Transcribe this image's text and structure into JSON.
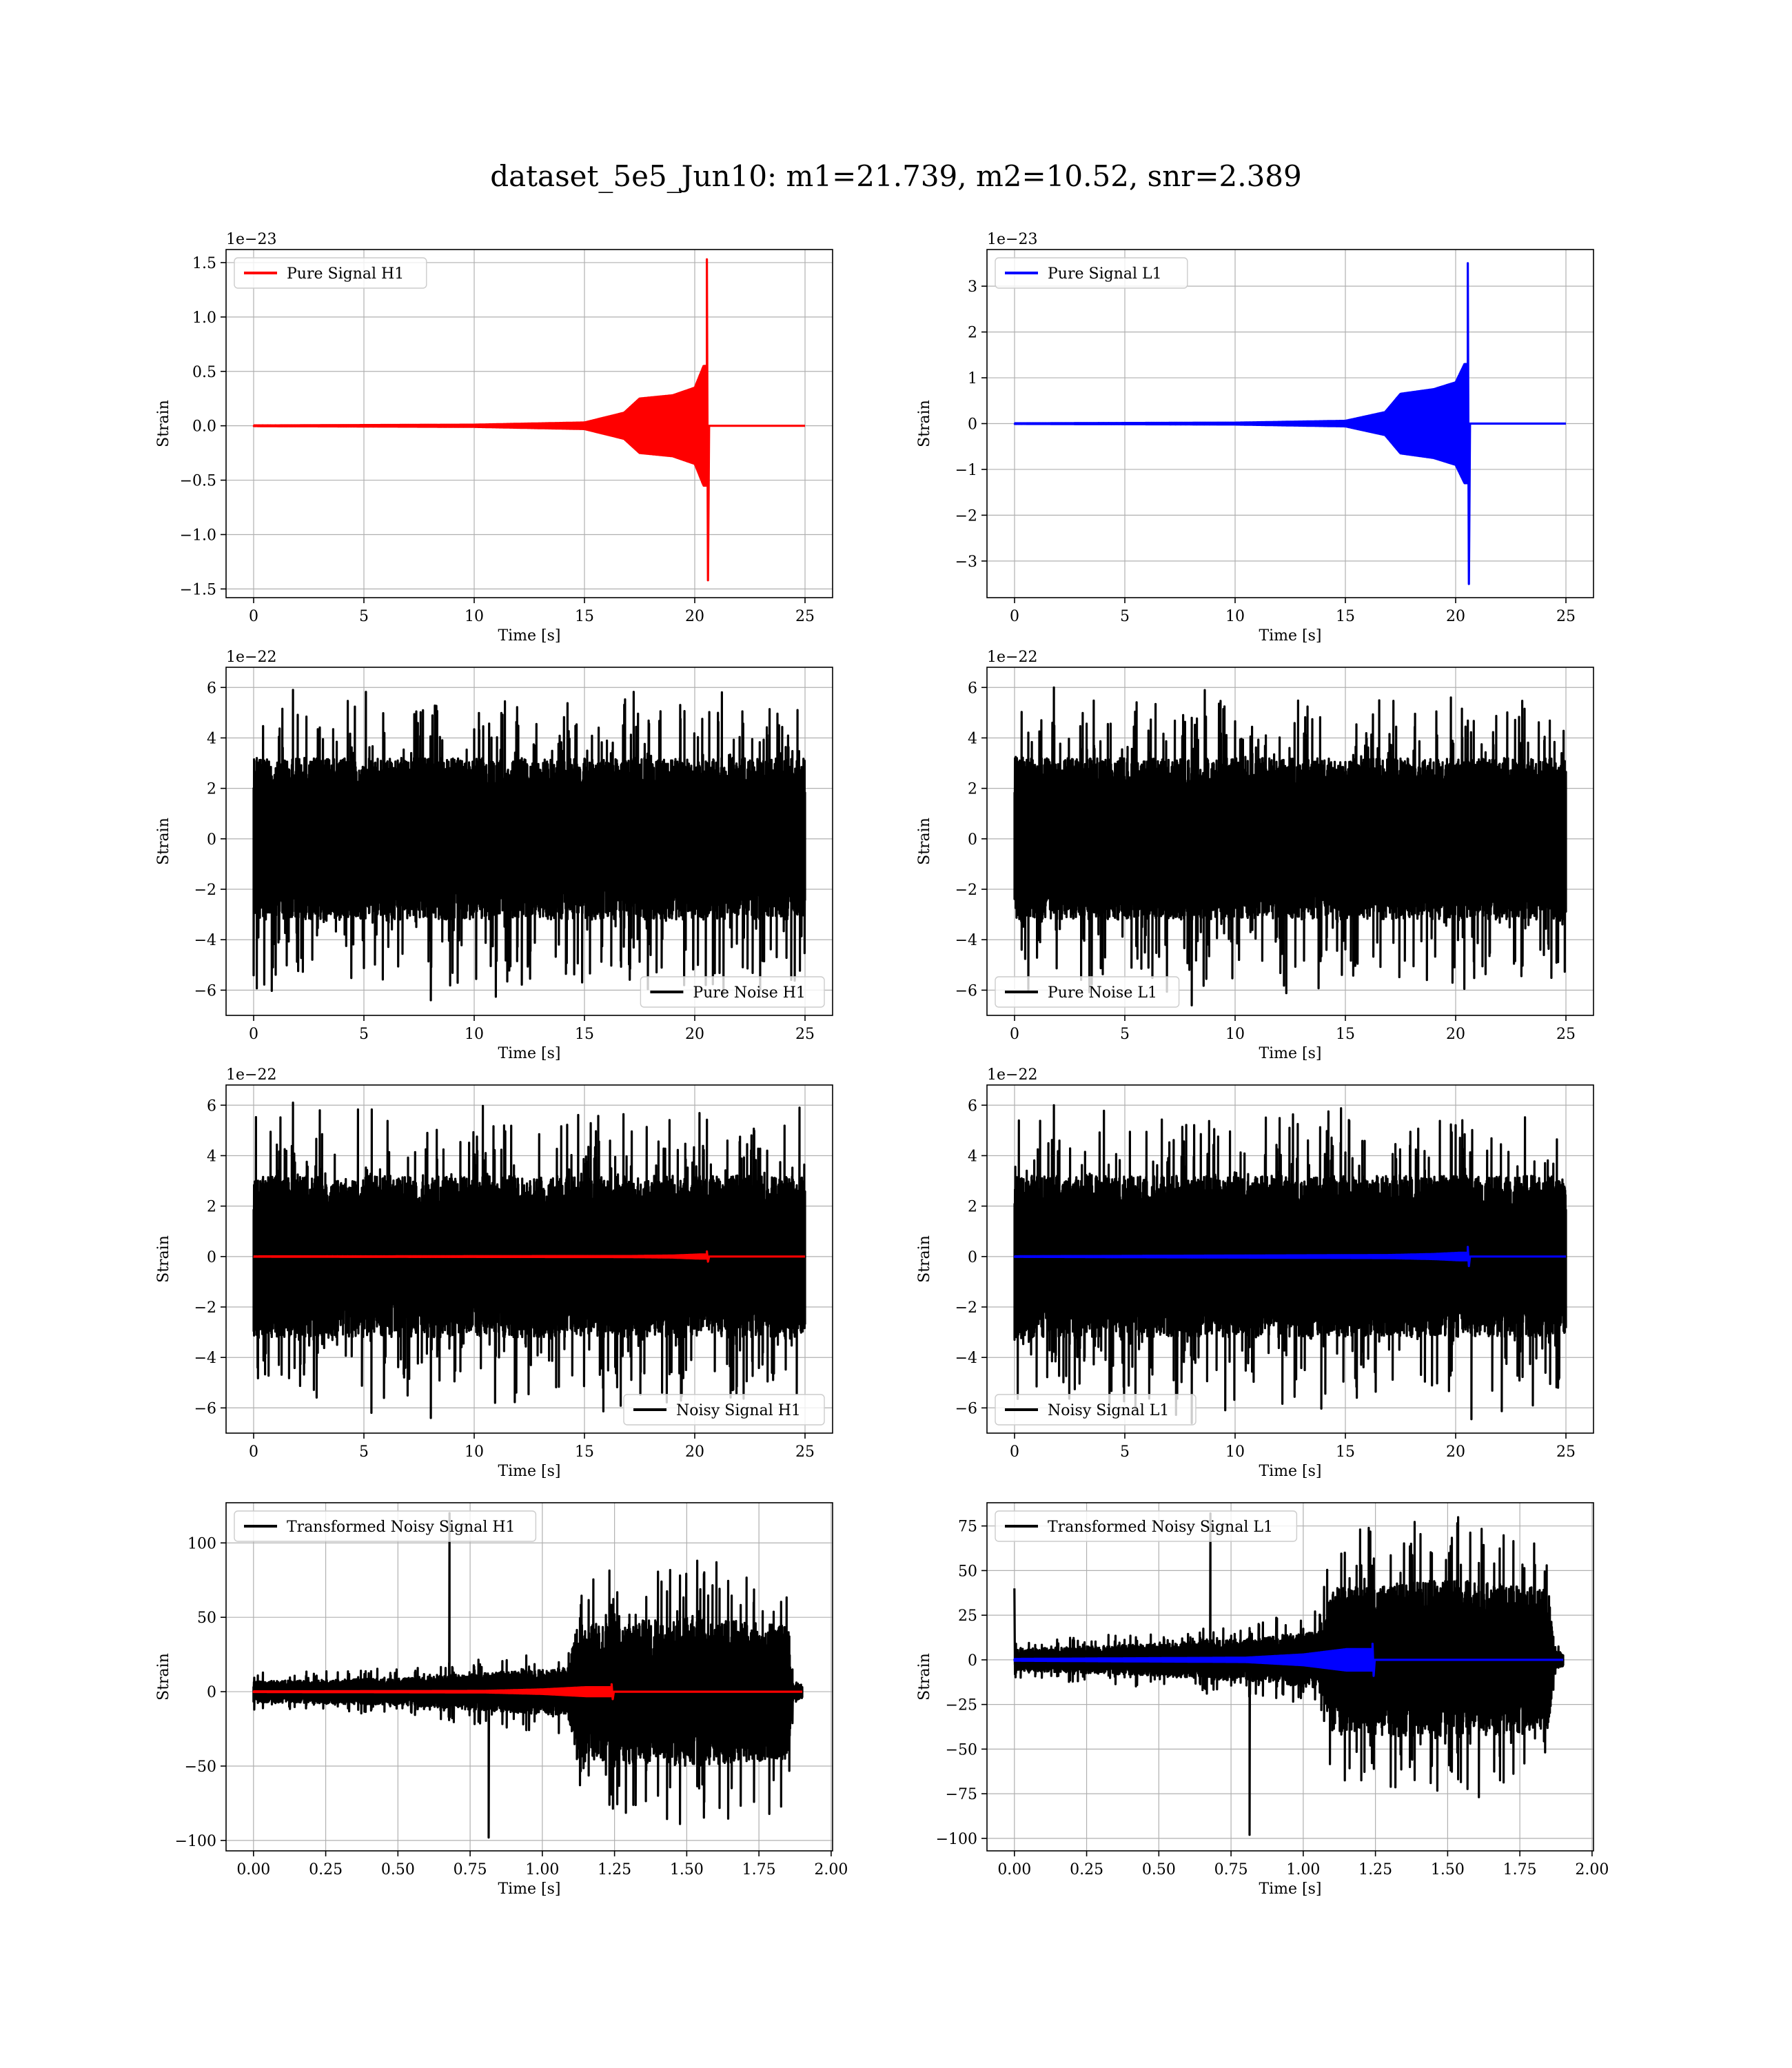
{
  "suptitle": "dataset_5e5_Jun10: m1=21.739, m2=10.52, snr=2.389",
  "chart_data": [
    {
      "id": "p1",
      "type": "line",
      "row": 0,
      "col": 0,
      "offset_text": "1e−23",
      "xlabel": "Time [s]",
      "ylabel": "Strain",
      "xlim": [
        -1.25,
        26.25
      ],
      "ylim": [
        -1.58,
        1.62
      ],
      "xticks": [
        0,
        5,
        10,
        15,
        20,
        25
      ],
      "xticklabels": [
        "0",
        "5",
        "10",
        "15",
        "20",
        "25"
      ],
      "yticks": [
        -1.5,
        -1.0,
        -0.5,
        0.0,
        0.5,
        1.0,
        1.5
      ],
      "yticklabels": [
        "−1.5",
        "−1.0",
        "−0.5",
        "0.0",
        "0.5",
        "1.0",
        "1.5"
      ],
      "grid": true,
      "legend_loc": "upper-left",
      "series": [
        {
          "name": "Pure Signal H1",
          "color": "#ff0000",
          "kind": "chirp",
          "x_range": [
            0,
            25
          ],
          "amp_stages": [
            [
              0,
              0.003
            ],
            [
              10,
              0.01
            ],
            [
              15,
              0.03
            ],
            [
              16.8,
              0.12
            ],
            [
              17.5,
              0.25
            ],
            [
              19,
              0.28
            ],
            [
              20.0,
              0.35
            ],
            [
              20.4,
              0.55
            ]
          ],
          "peak_t": 20.55,
          "peak_hi": 1.53,
          "peak_lo": -1.42
        }
      ]
    },
    {
      "id": "p2",
      "type": "line",
      "row": 0,
      "col": 1,
      "offset_text": "1e−23",
      "xlabel": "Time [s]",
      "ylabel": "Strain",
      "xlim": [
        -1.25,
        26.25
      ],
      "ylim": [
        -3.8,
        3.8
      ],
      "xticks": [
        0,
        5,
        10,
        15,
        20,
        25
      ],
      "xticklabels": [
        "0",
        "5",
        "10",
        "15",
        "20",
        "25"
      ],
      "yticks": [
        -3,
        -2,
        -1,
        0,
        1,
        2,
        3
      ],
      "yticklabels": [
        "−3",
        "−2",
        "−1",
        "0",
        "1",
        "2",
        "3"
      ],
      "grid": true,
      "legend_loc": "upper-left",
      "series": [
        {
          "name": "Pure Signal L1",
          "color": "#0000ff",
          "kind": "chirp",
          "x_range": [
            0,
            25
          ],
          "amp_stages": [
            [
              0,
              0.006
            ],
            [
              10,
              0.02
            ],
            [
              15,
              0.06
            ],
            [
              16.8,
              0.25
            ],
            [
              17.5,
              0.65
            ],
            [
              19,
              0.75
            ],
            [
              20.0,
              0.9
            ],
            [
              20.4,
              1.3
            ]
          ],
          "peak_t": 20.55,
          "peak_hi": 3.5,
          "peak_lo": -3.5
        }
      ]
    },
    {
      "id": "p3",
      "type": "line",
      "row": 1,
      "col": 0,
      "offset_text": "1e−22",
      "xlabel": "Time [s]",
      "ylabel": "Strain",
      "xlim": [
        -1.25,
        26.25
      ],
      "ylim": [
        -7.0,
        6.8
      ],
      "xticks": [
        0,
        5,
        10,
        15,
        20,
        25
      ],
      "xticklabels": [
        "0",
        "5",
        "10",
        "15",
        "20",
        "25"
      ],
      "yticks": [
        -6,
        -4,
        -2,
        0,
        2,
        4,
        6
      ],
      "yticklabels": [
        "−6",
        "−4",
        "−2",
        "0",
        "2",
        "4",
        "6"
      ],
      "grid": true,
      "legend_loc": "lower-right",
      "series": [
        {
          "name": "Pure Noise H1",
          "color": "#000000",
          "kind": "noise",
          "x_range": [
            0,
            25
          ],
          "band": [
            -3.2,
            3.2
          ],
          "max_hi": 5.9,
          "min_lo": -6.4,
          "seed": 11
        }
      ]
    },
    {
      "id": "p4",
      "type": "line",
      "row": 1,
      "col": 1,
      "offset_text": "1e−22",
      "xlabel": "Time [s]",
      "ylabel": "Strain",
      "xlim": [
        -1.25,
        26.25
      ],
      "ylim": [
        -7.0,
        6.8
      ],
      "xticks": [
        0,
        5,
        10,
        15,
        20,
        25
      ],
      "xticklabels": [
        "0",
        "5",
        "10",
        "15",
        "20",
        "25"
      ],
      "yticks": [
        -6,
        -4,
        -2,
        0,
        2,
        4,
        6
      ],
      "yticklabels": [
        "−6",
        "−4",
        "−2",
        "0",
        "2",
        "4",
        "6"
      ],
      "grid": true,
      "legend_loc": "lower-left",
      "series": [
        {
          "name": "Pure Noise L1",
          "color": "#000000",
          "kind": "noise",
          "x_range": [
            0,
            25
          ],
          "band": [
            -3.2,
            3.2
          ],
          "max_hi": 6.0,
          "min_lo": -6.6,
          "seed": 23
        }
      ]
    },
    {
      "id": "p5",
      "type": "line",
      "row": 2,
      "col": 0,
      "offset_text": "1e−22",
      "xlabel": "Time [s]",
      "ylabel": "Strain",
      "xlim": [
        -1.25,
        26.25
      ],
      "ylim": [
        -7.0,
        6.8
      ],
      "xticks": [
        0,
        5,
        10,
        15,
        20,
        25
      ],
      "xticklabels": [
        "0",
        "5",
        "10",
        "15",
        "20",
        "25"
      ],
      "yticks": [
        -6,
        -4,
        -2,
        0,
        2,
        4,
        6
      ],
      "yticklabels": [
        "−6",
        "−4",
        "−2",
        "0",
        "2",
        "4",
        "6"
      ],
      "grid": true,
      "legend_loc": "lower-right",
      "series": [
        {
          "name": "Noisy Signal H1",
          "color": "#000000",
          "kind": "noise",
          "x_range": [
            0,
            25
          ],
          "band": [
            -3.2,
            3.2
          ],
          "max_hi": 6.1,
          "min_lo": -6.4,
          "seed": 37
        },
        {
          "name": "",
          "color": "#ff0000",
          "kind": "chirp",
          "x_range": [
            0,
            25
          ],
          "amp_stages": [
            [
              0,
              0.005
            ],
            [
              17,
              0.02
            ],
            [
              19,
              0.04
            ],
            [
              20.2,
              0.08
            ]
          ],
          "peak_t": 20.55,
          "peak_hi": 0.2,
          "peak_lo": -0.2
        }
      ]
    },
    {
      "id": "p6",
      "type": "line",
      "row": 2,
      "col": 1,
      "offset_text": "1e−22",
      "xlabel": "Time [s]",
      "ylabel": "Strain",
      "xlim": [
        -1.25,
        26.25
      ],
      "ylim": [
        -7.0,
        6.8
      ],
      "xticks": [
        0,
        5,
        10,
        15,
        20,
        25
      ],
      "xticklabels": [
        "0",
        "5",
        "10",
        "15",
        "20",
        "25"
      ],
      "yticks": [
        -6,
        -4,
        -2,
        0,
        2,
        4,
        6
      ],
      "yticklabels": [
        "−6",
        "−4",
        "−2",
        "0",
        "2",
        "4",
        "6"
      ],
      "grid": true,
      "legend_loc": "lower-left",
      "series": [
        {
          "name": "Noisy Signal L1",
          "color": "#000000",
          "kind": "noise",
          "x_range": [
            0,
            25
          ],
          "band": [
            -3.2,
            3.2
          ],
          "max_hi": 6.0,
          "min_lo": -6.6,
          "seed": 53
        },
        {
          "name": "",
          "color": "#0000ff",
          "kind": "chirp",
          "x_range": [
            0,
            25
          ],
          "amp_stages": [
            [
              0,
              0.01
            ],
            [
              17,
              0.06
            ],
            [
              19,
              0.1
            ],
            [
              20.2,
              0.15
            ]
          ],
          "peak_t": 20.55,
          "peak_hi": 0.38,
          "peak_lo": -0.38
        }
      ]
    },
    {
      "id": "p7",
      "type": "line",
      "row": 3,
      "col": 0,
      "offset_text": "",
      "xlabel": "Time [s]",
      "ylabel": "Strain",
      "xlim": [
        -0.095,
        2.005
      ],
      "ylim": [
        -107,
        127
      ],
      "xticks": [
        0.0,
        0.25,
        0.5,
        0.75,
        1.0,
        1.25,
        1.5,
        1.75,
        2.0
      ],
      "xticklabels": [
        "0.00",
        "0.25",
        "0.50",
        "0.75",
        "1.00",
        "1.25",
        "1.50",
        "1.75",
        "2.00"
      ],
      "yticks": [
        -100,
        -50,
        0,
        50,
        100
      ],
      "yticklabels": [
        "−100",
        "−50",
        "0",
        "50",
        "100"
      ],
      "grid": true,
      "legend_loc": "upper-left",
      "series": [
        {
          "name": "Transformed Noisy Signal H1",
          "color": "#000000",
          "kind": "envnoise",
          "x_range": [
            0,
            1.9
          ],
          "env": [
            [
              0,
              7
            ],
            [
              0.5,
              9
            ],
            [
              0.9,
              14
            ],
            [
              1.09,
              16
            ],
            [
              1.12,
              45
            ],
            [
              1.5,
              50
            ],
            [
              1.85,
              45
            ],
            [
              1.87,
              5
            ],
            [
              1.9,
              5
            ]
          ],
          "max_hi": 120,
          "min_lo": -98,
          "seed": 71
        },
        {
          "name": "",
          "color": "#ff0000",
          "kind": "chirp",
          "x_range": [
            0,
            1.9
          ],
          "amp_stages": [
            [
              0,
              0.2
            ],
            [
              0.8,
              0.5
            ],
            [
              1.0,
              1.5
            ],
            [
              1.15,
              3.0
            ]
          ],
          "peak_t": 1.24,
          "peak_hi": 5,
          "peak_lo": -5
        }
      ]
    },
    {
      "id": "p8",
      "type": "line",
      "row": 3,
      "col": 1,
      "offset_text": "",
      "xlabel": "Time [s]",
      "ylabel": "Strain",
      "xlim": [
        -0.095,
        2.005
      ],
      "ylim": [
        -107,
        88
      ],
      "xticks": [
        0.0,
        0.25,
        0.5,
        0.75,
        1.0,
        1.25,
        1.5,
        1.75,
        2.0
      ],
      "xticklabels": [
        "0.00",
        "0.25",
        "0.50",
        "0.75",
        "1.00",
        "1.25",
        "1.50",
        "1.75",
        "2.00"
      ],
      "yticks": [
        -100,
        -75,
        -50,
        -25,
        0,
        25,
        50,
        75
      ],
      "yticklabels": [
        "−100",
        "−75",
        "−50",
        "−25",
        "0",
        "25",
        "50",
        "75"
      ],
      "grid": true,
      "legend_loc": "upper-left",
      "series": [
        {
          "name": "Transformed Noisy Signal L1",
          "color": "#000000",
          "kind": "envnoise",
          "x_range": [
            0,
            1.9
          ],
          "env": [
            [
              0,
              6
            ],
            [
              0.5,
              9
            ],
            [
              0.9,
              13
            ],
            [
              1.06,
              16
            ],
            [
              1.1,
              40
            ],
            [
              1.5,
              45
            ],
            [
              1.85,
              40
            ],
            [
              1.87,
              5
            ],
            [
              1.9,
              4
            ]
          ],
          "max_hi": 82,
          "min_lo": -98,
          "seed": 89,
          "spike_start": 40
        },
        {
          "name": "",
          "color": "#0000ff",
          "kind": "chirp",
          "x_range": [
            0,
            1.9
          ],
          "amp_stages": [
            [
              0,
              0.5
            ],
            [
              0.8,
              1.2
            ],
            [
              1.0,
              3.0
            ],
            [
              1.15,
              6.0
            ]
          ],
          "peak_t": 1.24,
          "peak_hi": 9,
          "peak_lo": -9
        }
      ]
    }
  ]
}
